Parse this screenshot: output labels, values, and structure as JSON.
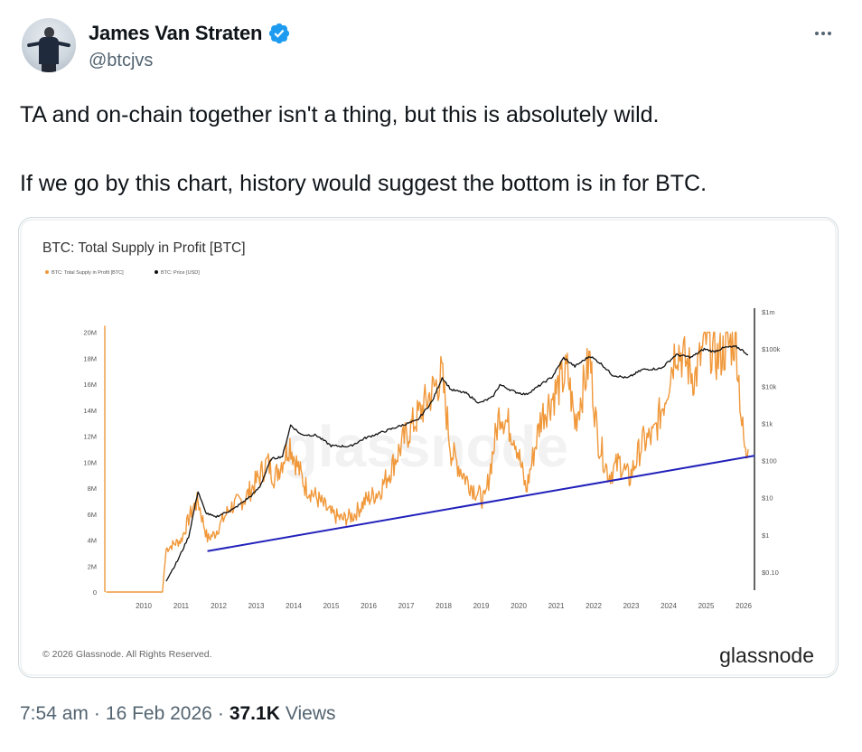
{
  "author": {
    "display_name": "James Van Straten",
    "handle": "@btcjvs",
    "avatar_icon": "user-avatar-icon",
    "verified_icon": "verified-badge-icon",
    "verified_color": "#1d9bf0"
  },
  "tweet": {
    "line1": "TA and on-chain together isn't a thing, but this is absolutely wild.",
    "line2": "If we go by this chart, history would suggest the bottom is in for BTC."
  },
  "footer": {
    "time": "7:54 am",
    "separator": "·",
    "date": "16 Feb 2026",
    "views_count": "37.1K",
    "views_label": "Views"
  },
  "chart_card": {
    "copyright": "© 2026 Glassnode. All Rights Reserved.",
    "brand": "glassnode",
    "watermark": "glassnode"
  },
  "chart_data": {
    "type": "line",
    "title": "BTC: Total Supply in Profit [BTC]",
    "legend_position": "top-left",
    "legend": [
      "BTC: Total Supply in Profit [BTC]",
      "BTC: Price [USD]"
    ],
    "x_ticks": [
      "2010",
      "2011",
      "2012",
      "2013",
      "2014",
      "2015",
      "2016",
      "2017",
      "2018",
      "2019",
      "2020",
      "2021",
      "2022",
      "2023",
      "2024",
      "2025",
      "2026"
    ],
    "y_left_ticks": [
      "0",
      "2M",
      "4M",
      "6M",
      "8M",
      "10M",
      "12M",
      "14M",
      "16M",
      "18M",
      "20M"
    ],
    "y_right_ticks": [
      "$0.10",
      "$1",
      "$10",
      "$100",
      "$1k",
      "$10k",
      "$100k",
      "$1m"
    ],
    "y_left_range": [
      0,
      20600000
    ],
    "y_right_scale": "log",
    "y_right_range": [
      0.05,
      1500000
    ],
    "grid": false,
    "series": [
      {
        "name": "BTC: Total Supply in Profit [BTC]",
        "color": "#f0983a",
        "axis": "left",
        "x": [
          2009.0,
          2010.5,
          2010.6,
          2010.8,
          2011.0,
          2011.3,
          2011.45,
          2011.7,
          2011.9,
          2012.3,
          2012.7,
          2013.0,
          2013.3,
          2013.5,
          2013.9,
          2014.0,
          2014.3,
          2014.7,
          2015.0,
          2015.3,
          2015.6,
          2015.9,
          2016.3,
          2016.6,
          2016.9,
          2017.3,
          2017.6,
          2017.95,
          2018.2,
          2018.6,
          2018.9,
          2019.1,
          2019.5,
          2019.9,
          2020.2,
          2020.6,
          2020.9,
          2021.3,
          2021.5,
          2021.9,
          2022.1,
          2022.4,
          2022.7,
          2022.95,
          2023.3,
          2023.6,
          2023.9,
          2024.2,
          2024.5,
          2024.7,
          2025.0,
          2025.3,
          2025.6,
          2025.8,
          2025.95,
          2026.05,
          2026.12
        ],
        "y": [
          0,
          0,
          3300000,
          3700000,
          4000000,
          6400000,
          7000000,
          4100000,
          4500000,
          6500000,
          7200000,
          8500000,
          10000000,
          8800000,
          11500000,
          10500000,
          8200000,
          7000000,
          6000000,
          5600000,
          5900000,
          7000000,
          7800000,
          9500000,
          11500000,
          13500000,
          15000000,
          16700000,
          10800000,
          8700000,
          7600000,
          7000000,
          14000000,
          12000000,
          7800000,
          13500000,
          15000000,
          17000000,
          13000000,
          18000000,
          12000000,
          9000000,
          10000000,
          8700000,
          11500000,
          12000000,
          15000000,
          19000000,
          17500000,
          16500000,
          19500000,
          18000000,
          19000000,
          19500000,
          13000000,
          10500000,
          11000000
        ]
      },
      {
        "name": "BTC: Price [USD]",
        "color": "#111111",
        "axis": "right",
        "x": [
          2010.6,
          2010.9,
          2011.2,
          2011.45,
          2011.65,
          2011.9,
          2012.4,
          2012.9,
          2013.1,
          2013.4,
          2013.7,
          2013.92,
          2014.2,
          2014.6,
          2015.0,
          2015.5,
          2015.9,
          2016.5,
          2016.9,
          2017.3,
          2017.7,
          2017.96,
          2018.2,
          2018.6,
          2018.95,
          2019.3,
          2019.5,
          2019.9,
          2020.2,
          2020.5,
          2020.9,
          2021.2,
          2021.5,
          2021.9,
          2022.2,
          2022.5,
          2022.9,
          2023.3,
          2023.8,
          2024.2,
          2024.6,
          2024.95,
          2025.2,
          2025.5,
          2025.8,
          2025.95,
          2026.12
        ],
        "y": [
          0.06,
          0.2,
          0.9,
          15,
          4,
          3,
          5,
          12,
          20,
          110,
          130,
          900,
          500,
          480,
          250,
          240,
          400,
          650,
          900,
          1200,
          4000,
          17000,
          8000,
          6500,
          3500,
          5000,
          11000,
          7000,
          6000,
          9500,
          18000,
          58000,
          34000,
          65000,
          40000,
          20000,
          16500,
          28000,
          30000,
          70000,
          60000,
          100000,
          85000,
          110000,
          115000,
          95000,
          70000
        ]
      }
    ],
    "annotations": [
      {
        "type": "trendline",
        "color": "#2121bb",
        "x": [
          2011.7,
          2026.3
        ],
        "y_left": [
          3150000,
          10500000
        ]
      }
    ]
  }
}
